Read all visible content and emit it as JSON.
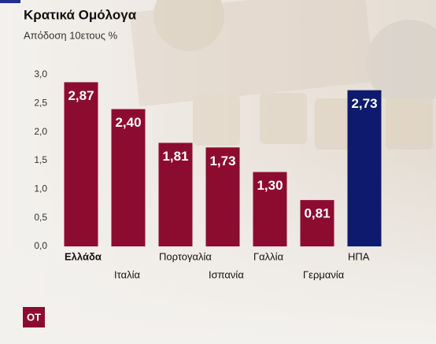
{
  "chart_data": {
    "type": "bar",
    "title": "Κρατικά Ομόλογα",
    "subtitle": "Απόδοση 10ετους %",
    "categories": [
      "Ελλάδα",
      "Ιταλία",
      "Πορτογαλία",
      "Ισπανία",
      "Γαλλία",
      "Γερμανία",
      "ΗΠΑ"
    ],
    "values": [
      2.87,
      2.4,
      1.81,
      1.73,
      1.3,
      0.81,
      2.73
    ],
    "value_labels": [
      "2,87",
      "2,40",
      "1,81",
      "1,73",
      "1,30",
      "0,81",
      "2,73"
    ],
    "colors": [
      "#8c0c30",
      "#8c0c30",
      "#8c0c30",
      "#8c0c30",
      "#8c0c30",
      "#8c0c30",
      "#0e1a6e"
    ],
    "ylim": [
      0,
      3
    ],
    "yticks": [
      {
        "value": 0,
        "label": "0,0"
      },
      {
        "value": 0.5,
        "label": "0,5"
      },
      {
        "value": 1,
        "label": "1,0"
      },
      {
        "value": 1.5,
        "label": "1,5"
      },
      {
        "value": 2,
        "label": "2,0"
      },
      {
        "value": 2.5,
        "label": "2,5"
      },
      {
        "value": 3,
        "label": "3,0"
      }
    ],
    "grid": false,
    "logo": "OT"
  }
}
